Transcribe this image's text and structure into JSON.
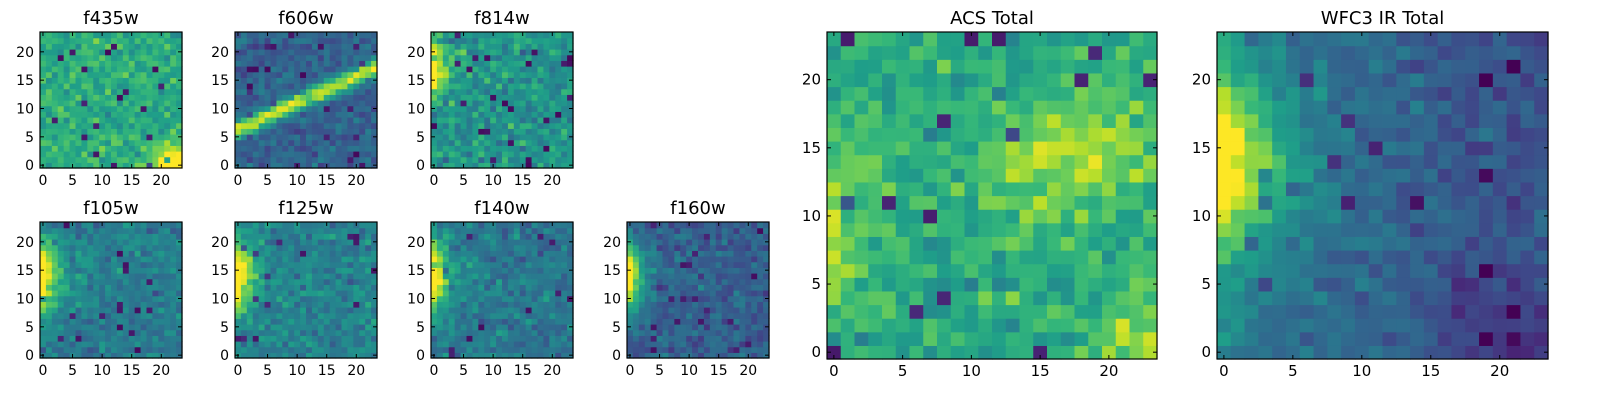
{
  "figure": {
    "colormap": "viridis",
    "colormap_stops": [
      "#440154",
      "#482878",
      "#3e4989",
      "#31688e",
      "#26828e",
      "#1f9e89",
      "#35b779",
      "#6ece58",
      "#b5de2b",
      "#fde725"
    ],
    "axis_color": "#000000"
  },
  "chart_data": [
    {
      "id": "f435w",
      "type": "heatmap",
      "title": "f435w",
      "grid_size": [
        24,
        24
      ],
      "x_ticks": [
        "0",
        "5",
        "10",
        "15",
        "20"
      ],
      "y_ticks": [
        "0",
        "5",
        "10",
        "15",
        "20"
      ],
      "pattern": "noise",
      "noise_mean": 0.62,
      "noise_sd": 0.14,
      "feature": "bright blob near bottom-right corner"
    },
    {
      "id": "f606w",
      "type": "heatmap",
      "title": "f606w",
      "grid_size": [
        24,
        24
      ],
      "x_ticks": [
        "0",
        "5",
        "10",
        "15",
        "20"
      ],
      "y_ticks": [
        "0",
        "5",
        "10",
        "15",
        "20"
      ],
      "pattern": "diagonal-streak",
      "noise_mean": 0.32,
      "noise_sd": 0.12,
      "feature": "bright diagonal streak from (0,7) to (24,18)"
    },
    {
      "id": "f814w",
      "type": "heatmap",
      "title": "f814w",
      "grid_size": [
        24,
        24
      ],
      "x_ticks": [
        "0",
        "5",
        "10",
        "15",
        "20"
      ],
      "y_ticks": [
        "0",
        "5",
        "10",
        "15",
        "20"
      ],
      "pattern": "left-edge",
      "noise_mean": 0.52,
      "noise_sd": 0.16,
      "feature": "bright source at left edge near y=17"
    },
    {
      "id": "f105w",
      "type": "heatmap",
      "title": "f105w",
      "grid_size": [
        24,
        24
      ],
      "x_ticks": [
        "0",
        "5",
        "10",
        "15",
        "20"
      ],
      "y_ticks": [
        "0",
        "5",
        "10",
        "15",
        "20"
      ],
      "pattern": "left-edge",
      "noise_mean": 0.42,
      "noise_sd": 0.13,
      "feature": "bright source at left edge near y=14"
    },
    {
      "id": "f125w",
      "type": "heatmap",
      "title": "f125w",
      "grid_size": [
        24,
        24
      ],
      "x_ticks": [
        "0",
        "5",
        "10",
        "15",
        "20"
      ],
      "y_ticks": [
        "0",
        "5",
        "10",
        "15",
        "20"
      ],
      "pattern": "left-edge",
      "noise_mean": 0.44,
      "noise_sd": 0.13,
      "feature": "bright source at left edge near y=14"
    },
    {
      "id": "f140w",
      "type": "heatmap",
      "title": "f140w",
      "grid_size": [
        24,
        24
      ],
      "x_ticks": [
        "0",
        "5",
        "10",
        "15",
        "20"
      ],
      "y_ticks": [
        "0",
        "5",
        "10",
        "15",
        "20"
      ],
      "pattern": "left-edge",
      "noise_mean": 0.4,
      "noise_sd": 0.13,
      "feature": "bright source at left edge near y=14"
    },
    {
      "id": "f160w",
      "type": "heatmap",
      "title": "f160w",
      "grid_size": [
        24,
        24
      ],
      "x_ticks": [
        "0",
        "5",
        "10",
        "15",
        "20"
      ],
      "y_ticks": [
        "0",
        "5",
        "10",
        "15",
        "20"
      ],
      "pattern": "left-edge",
      "noise_mean": 0.3,
      "noise_sd": 0.12,
      "feature": "bright source at left edge near y=14"
    },
    {
      "id": "acs_total",
      "type": "heatmap",
      "title": "ACS Total",
      "grid_size": [
        24,
        24
      ],
      "x_ticks": [
        "0",
        "5",
        "10",
        "15",
        "20"
      ],
      "y_ticks": [
        "0",
        "5",
        "10",
        "15",
        "20"
      ],
      "pattern": "acs",
      "noise_mean": 0.6,
      "noise_sd": 0.15,
      "feature": "bright left edge, bright region upper-right and bottom-right"
    },
    {
      "id": "wfc3_ir_total",
      "type": "heatmap",
      "title": "WFC3 IR Total",
      "grid_size": [
        24,
        24
      ],
      "x_ticks": [
        "0",
        "5",
        "10",
        "15",
        "20"
      ],
      "y_ticks": [
        "0",
        "5",
        "10",
        "15",
        "20"
      ],
      "pattern": "left-edge",
      "noise_mean": 0.32,
      "noise_sd": 0.1,
      "feature": "bright source at left edge near y=14, fading right"
    }
  ]
}
